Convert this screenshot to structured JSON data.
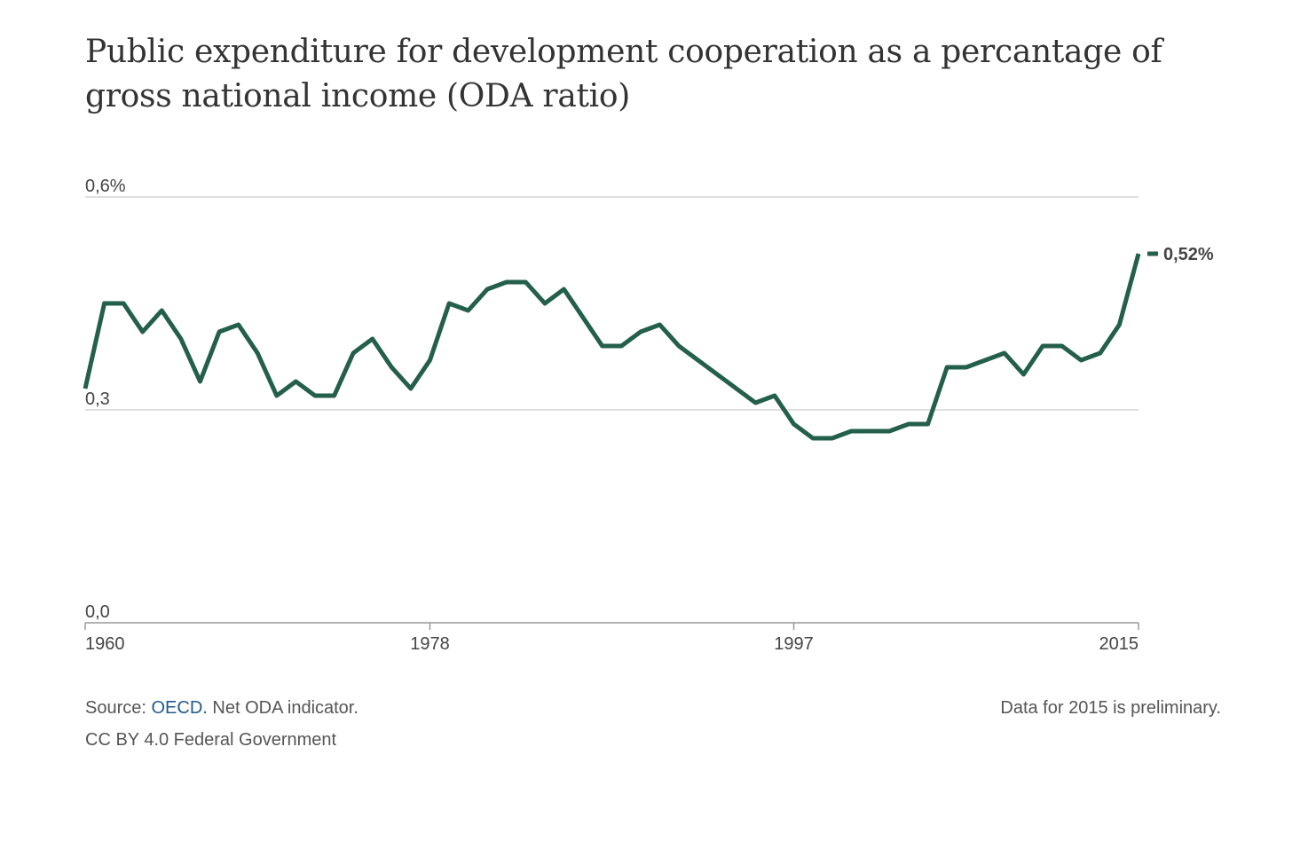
{
  "title": "Public expenditure for development cooperation as a percantage of gross national income (ODA ratio)",
  "footer": {
    "source_prefix": "Source:",
    "source_link": "OECD.",
    "source_suffix": " Net ODA indicator.",
    "license": "CC BY 4.0 Federal Government",
    "note": "Data for 2015 is preliminary."
  },
  "colors": {
    "line": "#235f4b",
    "grid": "#cccccc",
    "axis": "#999999",
    "link": "#1f5a8c"
  },
  "chart_data": {
    "type": "line",
    "title": "Public expenditure for development cooperation as a percantage of gross national income (ODA ratio)",
    "xlabel": "",
    "ylabel": "",
    "xlim": [
      1960,
      2015
    ],
    "ylim": [
      0,
      0.6
    ],
    "y_ticks": [
      {
        "value": 0.6,
        "label": "0,6%"
      },
      {
        "value": 0.3,
        "label": "0,3"
      },
      {
        "value": 0.0,
        "label": "0,0"
      }
    ],
    "x_ticks": [
      {
        "value": 1960,
        "label": "1960"
      },
      {
        "value": 1978,
        "label": "1978"
      },
      {
        "value": 1997,
        "label": "1997"
      },
      {
        "value": 2015,
        "label": "2015"
      }
    ],
    "grid": true,
    "end_label": "0,52%",
    "series": [
      {
        "x": [
          1960,
          1961,
          1962,
          1963,
          1964,
          1965,
          1966,
          1967,
          1968,
          1969,
          1970,
          1971,
          1972,
          1973,
          1974,
          1975,
          1976,
          1977,
          1978,
          1979,
          1980,
          1981,
          1982,
          1983,
          1984,
          1985,
          1986,
          1987,
          1988,
          1989,
          1990,
          1991,
          1992,
          1993,
          1994,
          1995,
          1996,
          1997,
          1998,
          1999,
          2000,
          2001,
          2002,
          2003,
          2004,
          2005,
          2006,
          2007,
          2008,
          2009,
          2010,
          2011,
          2012,
          2013,
          2014,
          2015
        ],
        "values": [
          0.33,
          0.45,
          0.45,
          0.41,
          0.44,
          0.4,
          0.34,
          0.41,
          0.42,
          0.38,
          0.32,
          0.34,
          0.32,
          0.32,
          0.38,
          0.4,
          0.36,
          0.33,
          0.37,
          0.45,
          0.44,
          0.47,
          0.48,
          0.48,
          0.45,
          0.47,
          0.43,
          0.39,
          0.39,
          0.41,
          0.42,
          0.39,
          0.37,
          0.35,
          0.33,
          0.31,
          0.32,
          0.28,
          0.26,
          0.26,
          0.27,
          0.27,
          0.27,
          0.28,
          0.28,
          0.36,
          0.36,
          0.37,
          0.38,
          0.35,
          0.39,
          0.39,
          0.37,
          0.38,
          0.42,
          0.52
        ]
      }
    ]
  }
}
